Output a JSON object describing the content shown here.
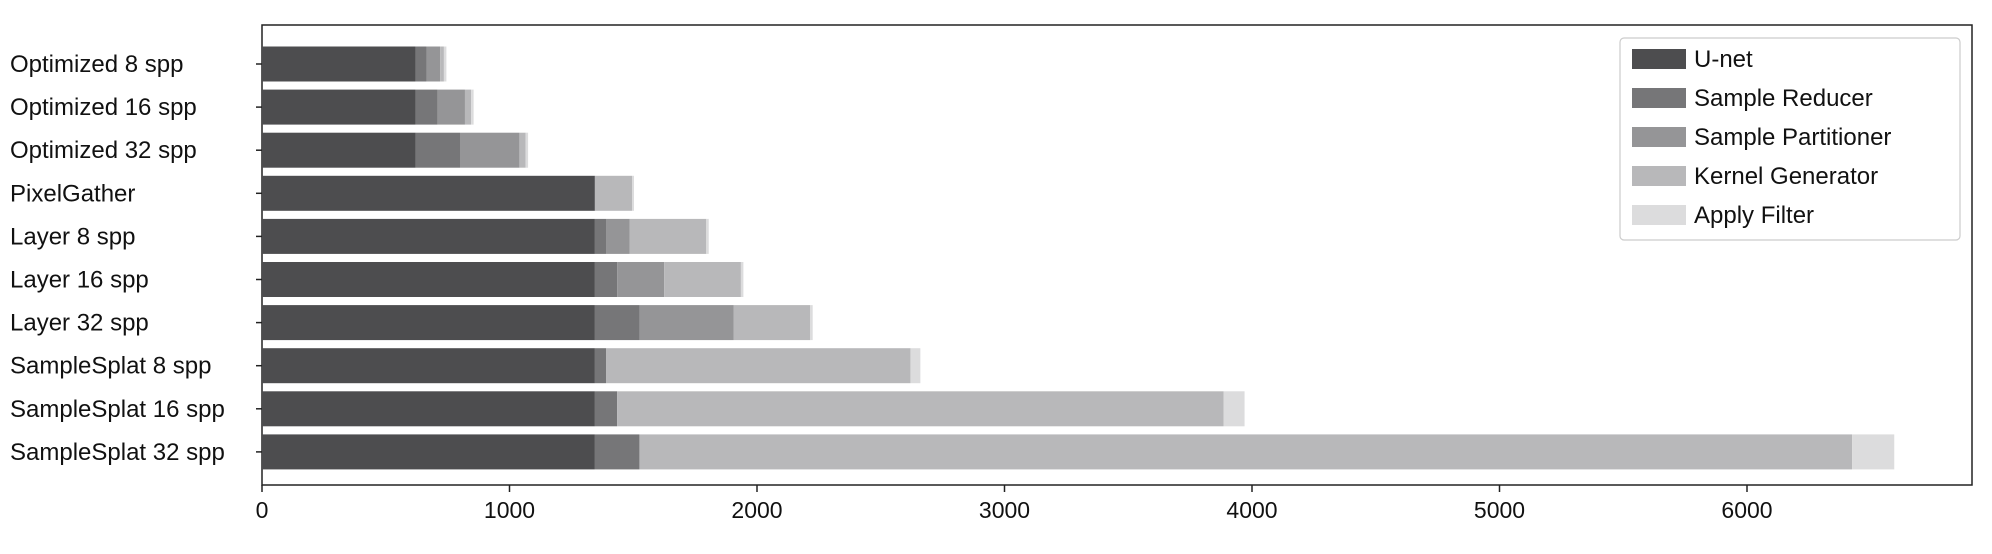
{
  "chart_data": {
    "type": "bar",
    "orientation": "horizontal",
    "stacked": true,
    "categories": [
      "Optimized 8 spp",
      "Optimized 16 spp",
      "Optimized 32 spp",
      "PixelGather",
      "Layer 8 spp",
      "Layer 16 spp",
      "Layer 32 spp",
      "SampleSplat 8 spp",
      "SampleSplat 16 spp",
      "SampleSplat 32 spp"
    ],
    "series": [
      {
        "name": "U-net",
        "color": "#4d4d4f",
        "values": [
          620,
          620,
          620,
          1345,
          1345,
          1345,
          1345,
          1345,
          1345,
          1345
        ]
      },
      {
        "name": "Sample Reducer",
        "color": "#767678",
        "values": [
          45,
          90,
          180,
          0,
          45,
          90,
          180,
          45,
          90,
          180
        ]
      },
      {
        "name": "Sample Partitioner",
        "color": "#959597",
        "values": [
          55,
          110,
          240,
          0,
          95,
          190,
          380,
          0,
          0,
          0
        ]
      },
      {
        "name": "Kernel Generator",
        "color": "#b8b8ba",
        "values": [
          15,
          25,
          25,
          150,
          310,
          310,
          310,
          1230,
          2450,
          4900
        ]
      },
      {
        "name": "Apply Filter",
        "color": "#dcdcdd",
        "values": [
          10,
          10,
          10,
          8,
          10,
          10,
          10,
          40,
          85,
          170
        ]
      }
    ],
    "title": "",
    "xlabel": "",
    "ylabel": "",
    "xlim": [
      0,
      6900
    ],
    "xticks": [
      0,
      1000,
      2000,
      3000,
      4000,
      5000,
      6000
    ],
    "grid": false,
    "legend_position": "top-right"
  }
}
